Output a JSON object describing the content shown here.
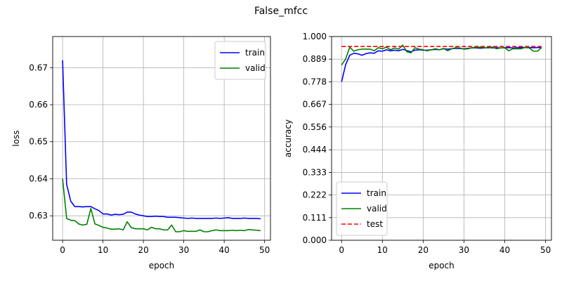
{
  "figure": {
    "suptitle": "False_mfcc"
  },
  "chart_data": [
    {
      "type": "line",
      "xlabel": "epoch",
      "ylabel": "loss",
      "xlim": [
        -2.45,
        51.45
      ],
      "ylim": [
        0.6234,
        0.6784
      ],
      "xticks": [
        0,
        10,
        20,
        30,
        40,
        50
      ],
      "xtick_labels": [
        "0",
        "10",
        "20",
        "30",
        "40",
        "50"
      ],
      "yticks": [
        0.63,
        0.64,
        0.65,
        0.66,
        0.67
      ],
      "ytick_labels": [
        "0.63",
        "0.64",
        "0.65",
        "0.66",
        "0.67"
      ],
      "grid": true,
      "legend_position": "top-right",
      "series": [
        {
          "name": "train",
          "color": "#0000ff",
          "dashed": false,
          "x": [
            0,
            1,
            2,
            3,
            4,
            5,
            6,
            7,
            8,
            9,
            10,
            11,
            12,
            13,
            14,
            15,
            16,
            17,
            18,
            19,
            20,
            21,
            22,
            23,
            24,
            25,
            26,
            27,
            28,
            29,
            30,
            31,
            32,
            33,
            34,
            35,
            36,
            37,
            38,
            39,
            40,
            41,
            42,
            43,
            44,
            45,
            46,
            47,
            48,
            49
          ],
          "y": [
            0.672,
            0.6385,
            0.634,
            0.6325,
            0.6325,
            0.6324,
            0.6325,
            0.6325,
            0.6319,
            0.6314,
            0.6305,
            0.6305,
            0.6302,
            0.6304,
            0.6303,
            0.6304,
            0.631,
            0.631,
            0.6305,
            0.6302,
            0.63,
            0.6298,
            0.6298,
            0.6299,
            0.6298,
            0.6298,
            0.6296,
            0.6296,
            0.6296,
            0.6295,
            0.6294,
            0.6293,
            0.6294,
            0.6293,
            0.6293,
            0.6293,
            0.6293,
            0.6293,
            0.6294,
            0.6293,
            0.6294,
            0.6295,
            0.6293,
            0.6293,
            0.6293,
            0.6294,
            0.6293,
            0.6293,
            0.6293,
            0.6292
          ]
        },
        {
          "name": "valid",
          "color": "#008000",
          "dashed": false,
          "x": [
            0,
            1,
            2,
            3,
            4,
            5,
            6,
            7,
            8,
            9,
            10,
            11,
            12,
            13,
            14,
            15,
            16,
            17,
            18,
            19,
            20,
            21,
            22,
            23,
            24,
            25,
            26,
            27,
            28,
            29,
            30,
            31,
            32,
            33,
            34,
            35,
            36,
            37,
            38,
            39,
            40,
            41,
            42,
            43,
            44,
            45,
            46,
            47,
            48,
            49
          ],
          "y": [
            0.64,
            0.6293,
            0.6288,
            0.6287,
            0.6278,
            0.6275,
            0.6277,
            0.632,
            0.6278,
            0.6274,
            0.6269,
            0.6267,
            0.6264,
            0.6264,
            0.6265,
            0.6262,
            0.6284,
            0.6268,
            0.6265,
            0.6265,
            0.6265,
            0.6262,
            0.6269,
            0.6265,
            0.6265,
            0.6262,
            0.6262,
            0.6275,
            0.6257,
            0.6257,
            0.626,
            0.6258,
            0.6258,
            0.6258,
            0.6262,
            0.6257,
            0.6257,
            0.626,
            0.6262,
            0.626,
            0.626,
            0.626,
            0.6261,
            0.626,
            0.6261,
            0.626,
            0.6263,
            0.6262,
            0.6261,
            0.626
          ]
        }
      ]
    },
    {
      "type": "line",
      "xlabel": "epoch",
      "ylabel": "accuracy",
      "xlim": [
        -2.45,
        51.45
      ],
      "ylim": [
        0,
        1
      ],
      "xticks": [
        0,
        10,
        20,
        30,
        40,
        50
      ],
      "xtick_labels": [
        "0",
        "10",
        "20",
        "30",
        "40",
        "50"
      ],
      "yticks": [
        0,
        0.111,
        0.222,
        0.333,
        0.444,
        0.556,
        0.667,
        0.778,
        0.889,
        1.0
      ],
      "ytick_labels": [
        "0.000",
        "0.111",
        "0.222",
        "0.333",
        "0.444",
        "0.556",
        "0.667",
        "0.778",
        "0.889",
        "1.000"
      ],
      "grid": true,
      "legend_position": "bottom-left",
      "series": [
        {
          "name": "train",
          "color": "#0000ff",
          "dashed": false,
          "x": [
            0,
            1,
            2,
            3,
            4,
            5,
            6,
            7,
            8,
            9,
            10,
            11,
            12,
            13,
            14,
            15,
            16,
            17,
            18,
            19,
            20,
            21,
            22,
            23,
            24,
            25,
            26,
            27,
            28,
            29,
            30,
            31,
            32,
            33,
            34,
            35,
            36,
            37,
            38,
            39,
            40,
            41,
            42,
            43,
            44,
            45,
            46,
            47,
            48,
            49
          ],
          "y": [
            0.778,
            0.862,
            0.908,
            0.918,
            0.915,
            0.908,
            0.916,
            0.92,
            0.918,
            0.93,
            0.928,
            0.935,
            0.93,
            0.933,
            0.93,
            0.937,
            0.931,
            0.925,
            0.933,
            0.935,
            0.933,
            0.933,
            0.935,
            0.937,
            0.935,
            0.94,
            0.938,
            0.94,
            0.942,
            0.941,
            0.94,
            0.942,
            0.944,
            0.944,
            0.943,
            0.944,
            0.946,
            0.944,
            0.945,
            0.944,
            0.945,
            0.946,
            0.944,
            0.945,
            0.946,
            0.946,
            0.946,
            0.945,
            0.946,
            0.946
          ]
        },
        {
          "name": "valid",
          "color": "#008000",
          "dashed": false,
          "x": [
            0,
            1,
            2,
            3,
            4,
            5,
            6,
            7,
            8,
            9,
            10,
            11,
            12,
            13,
            14,
            15,
            16,
            17,
            18,
            19,
            20,
            21,
            22,
            23,
            24,
            25,
            26,
            27,
            28,
            29,
            30,
            31,
            32,
            33,
            34,
            35,
            36,
            37,
            38,
            39,
            40,
            41,
            42,
            43,
            44,
            45,
            46,
            47,
            48,
            49
          ],
          "y": [
            0.86,
            0.89,
            0.948,
            0.928,
            0.935,
            0.938,
            0.938,
            0.938,
            0.93,
            0.945,
            0.94,
            0.948,
            0.935,
            0.944,
            0.938,
            0.958,
            0.925,
            0.92,
            0.945,
            0.938,
            0.935,
            0.93,
            0.935,
            0.94,
            0.935,
            0.942,
            0.93,
            0.94,
            0.945,
            0.944,
            0.938,
            0.94,
            0.945,
            0.946,
            0.948,
            0.945,
            0.944,
            0.948,
            0.94,
            0.944,
            0.945,
            0.93,
            0.94,
            0.94,
            0.94,
            0.946,
            0.944,
            0.928,
            0.928,
            0.945
          ]
        },
        {
          "name": "test",
          "color": "#ff0000",
          "dashed": true,
          "x": [
            0,
            49
          ],
          "y": [
            0.951,
            0.951
          ]
        }
      ]
    }
  ]
}
